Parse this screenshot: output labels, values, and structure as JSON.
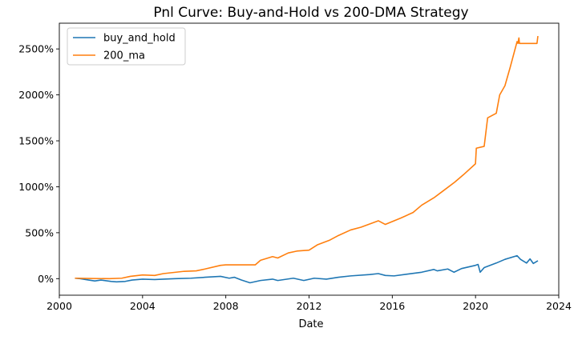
{
  "chart_data": {
    "type": "line",
    "title": "Pnl Curve: Buy-and-Hold vs 200-DMA Strategy",
    "xlabel": "Date",
    "ylabel": "",
    "x_ticks": [
      "2000",
      "2004",
      "2008",
      "2012",
      "2016",
      "2020",
      "2024"
    ],
    "y_ticks": [
      "0%",
      "500%",
      "1000%",
      "1500%",
      "2000%",
      "2500%"
    ],
    "xlim": [
      "2000-01-01",
      "2024-01-01"
    ],
    "ylim": [
      -180,
      2780
    ],
    "legend_position": "top-left",
    "grid": false,
    "series": [
      {
        "name": "buy_and_hold",
        "color": "#1f77b4",
        "points": [
          [
            "2000-10-01",
            5
          ],
          [
            "2001-01-01",
            0
          ],
          [
            "2001-06-01",
            -15
          ],
          [
            "2001-09-15",
            -25
          ],
          [
            "2002-01-01",
            -15
          ],
          [
            "2002-07-01",
            -30
          ],
          [
            "2002-10-01",
            -35
          ],
          [
            "2003-03-01",
            -30
          ],
          [
            "2003-07-01",
            -15
          ],
          [
            "2004-01-01",
            -5
          ],
          [
            "2004-08-01",
            -10
          ],
          [
            "2005-01-01",
            -5
          ],
          [
            "2005-08-01",
            0
          ],
          [
            "2006-05-01",
            5
          ],
          [
            "2007-01-01",
            15
          ],
          [
            "2007-10-01",
            25
          ],
          [
            "2008-03-01",
            5
          ],
          [
            "2008-06-01",
            15
          ],
          [
            "2008-10-01",
            -15
          ],
          [
            "2009-03-01",
            -45
          ],
          [
            "2009-09-01",
            -20
          ],
          [
            "2010-04-01",
            -5
          ],
          [
            "2010-07-01",
            -20
          ],
          [
            "2011-04-01",
            5
          ],
          [
            "2011-10-01",
            -20
          ],
          [
            "2012-04-01",
            5
          ],
          [
            "2012-11-01",
            -5
          ],
          [
            "2013-06-01",
            15
          ],
          [
            "2014-01-01",
            30
          ],
          [
            "2014-12-01",
            45
          ],
          [
            "2015-05-01",
            55
          ],
          [
            "2015-09-01",
            35
          ],
          [
            "2016-02-01",
            30
          ],
          [
            "2016-10-01",
            50
          ],
          [
            "2017-06-01",
            70
          ],
          [
            "2018-01-01",
            100
          ],
          [
            "2018-03-01",
            85
          ],
          [
            "2018-09-01",
            105
          ],
          [
            "2018-12-20",
            70
          ],
          [
            "2019-05-01",
            110
          ],
          [
            "2019-12-31",
            145
          ],
          [
            "2020-02-15",
            155
          ],
          [
            "2020-03-23",
            70
          ],
          [
            "2020-06-01",
            120
          ],
          [
            "2020-12-31",
            170
          ],
          [
            "2021-06-01",
            210
          ],
          [
            "2021-12-31",
            250
          ],
          [
            "2022-03-01",
            210
          ],
          [
            "2022-06-15",
            170
          ],
          [
            "2022-08-15",
            215
          ],
          [
            "2022-10-12",
            165
          ],
          [
            "2022-12-31",
            195
          ]
        ]
      },
      {
        "name": "200_ma",
        "color": "#ff7f0e",
        "points": [
          [
            "2000-10-01",
            5
          ],
          [
            "2001-06-01",
            2
          ],
          [
            "2002-06-01",
            0
          ],
          [
            "2003-01-01",
            5
          ],
          [
            "2003-06-01",
            25
          ],
          [
            "2004-01-01",
            40
          ],
          [
            "2004-08-01",
            35
          ],
          [
            "2005-01-01",
            55
          ],
          [
            "2006-01-01",
            80
          ],
          [
            "2006-08-01",
            85
          ],
          [
            "2007-01-01",
            105
          ],
          [
            "2007-10-01",
            145
          ],
          [
            "2008-01-01",
            150
          ],
          [
            "2009-06-01",
            150
          ],
          [
            "2009-09-01",
            200
          ],
          [
            "2010-04-01",
            240
          ],
          [
            "2010-07-01",
            225
          ],
          [
            "2011-01-01",
            280
          ],
          [
            "2011-06-01",
            300
          ],
          [
            "2012-01-01",
            310
          ],
          [
            "2012-06-01",
            370
          ],
          [
            "2013-01-01",
            420
          ],
          [
            "2013-06-01",
            470
          ],
          [
            "2014-01-01",
            530
          ],
          [
            "2014-07-01",
            560
          ],
          [
            "2015-05-01",
            630
          ],
          [
            "2015-09-01",
            590
          ],
          [
            "2016-06-01",
            660
          ],
          [
            "2016-12-31",
            720
          ],
          [
            "2017-06-01",
            800
          ],
          [
            "2018-01-01",
            880
          ],
          [
            "2018-06-01",
            950
          ],
          [
            "2018-12-31",
            1050
          ],
          [
            "2019-06-01",
            1130
          ],
          [
            "2019-12-31",
            1250
          ],
          [
            "2020-01-15",
            1420
          ],
          [
            "2020-06-01",
            1440
          ],
          [
            "2020-08-01",
            1750
          ],
          [
            "2020-12-31",
            1800
          ],
          [
            "2021-03-01",
            2000
          ],
          [
            "2021-06-01",
            2100
          ],
          [
            "2021-09-01",
            2300
          ],
          [
            "2021-12-31",
            2580
          ],
          [
            "2022-01-15",
            2560
          ],
          [
            "2022-02-01",
            2620
          ],
          [
            "2022-02-10",
            2560
          ],
          [
            "2022-12-15",
            2560
          ],
          [
            "2022-12-31",
            2640
          ]
        ]
      }
    ]
  }
}
